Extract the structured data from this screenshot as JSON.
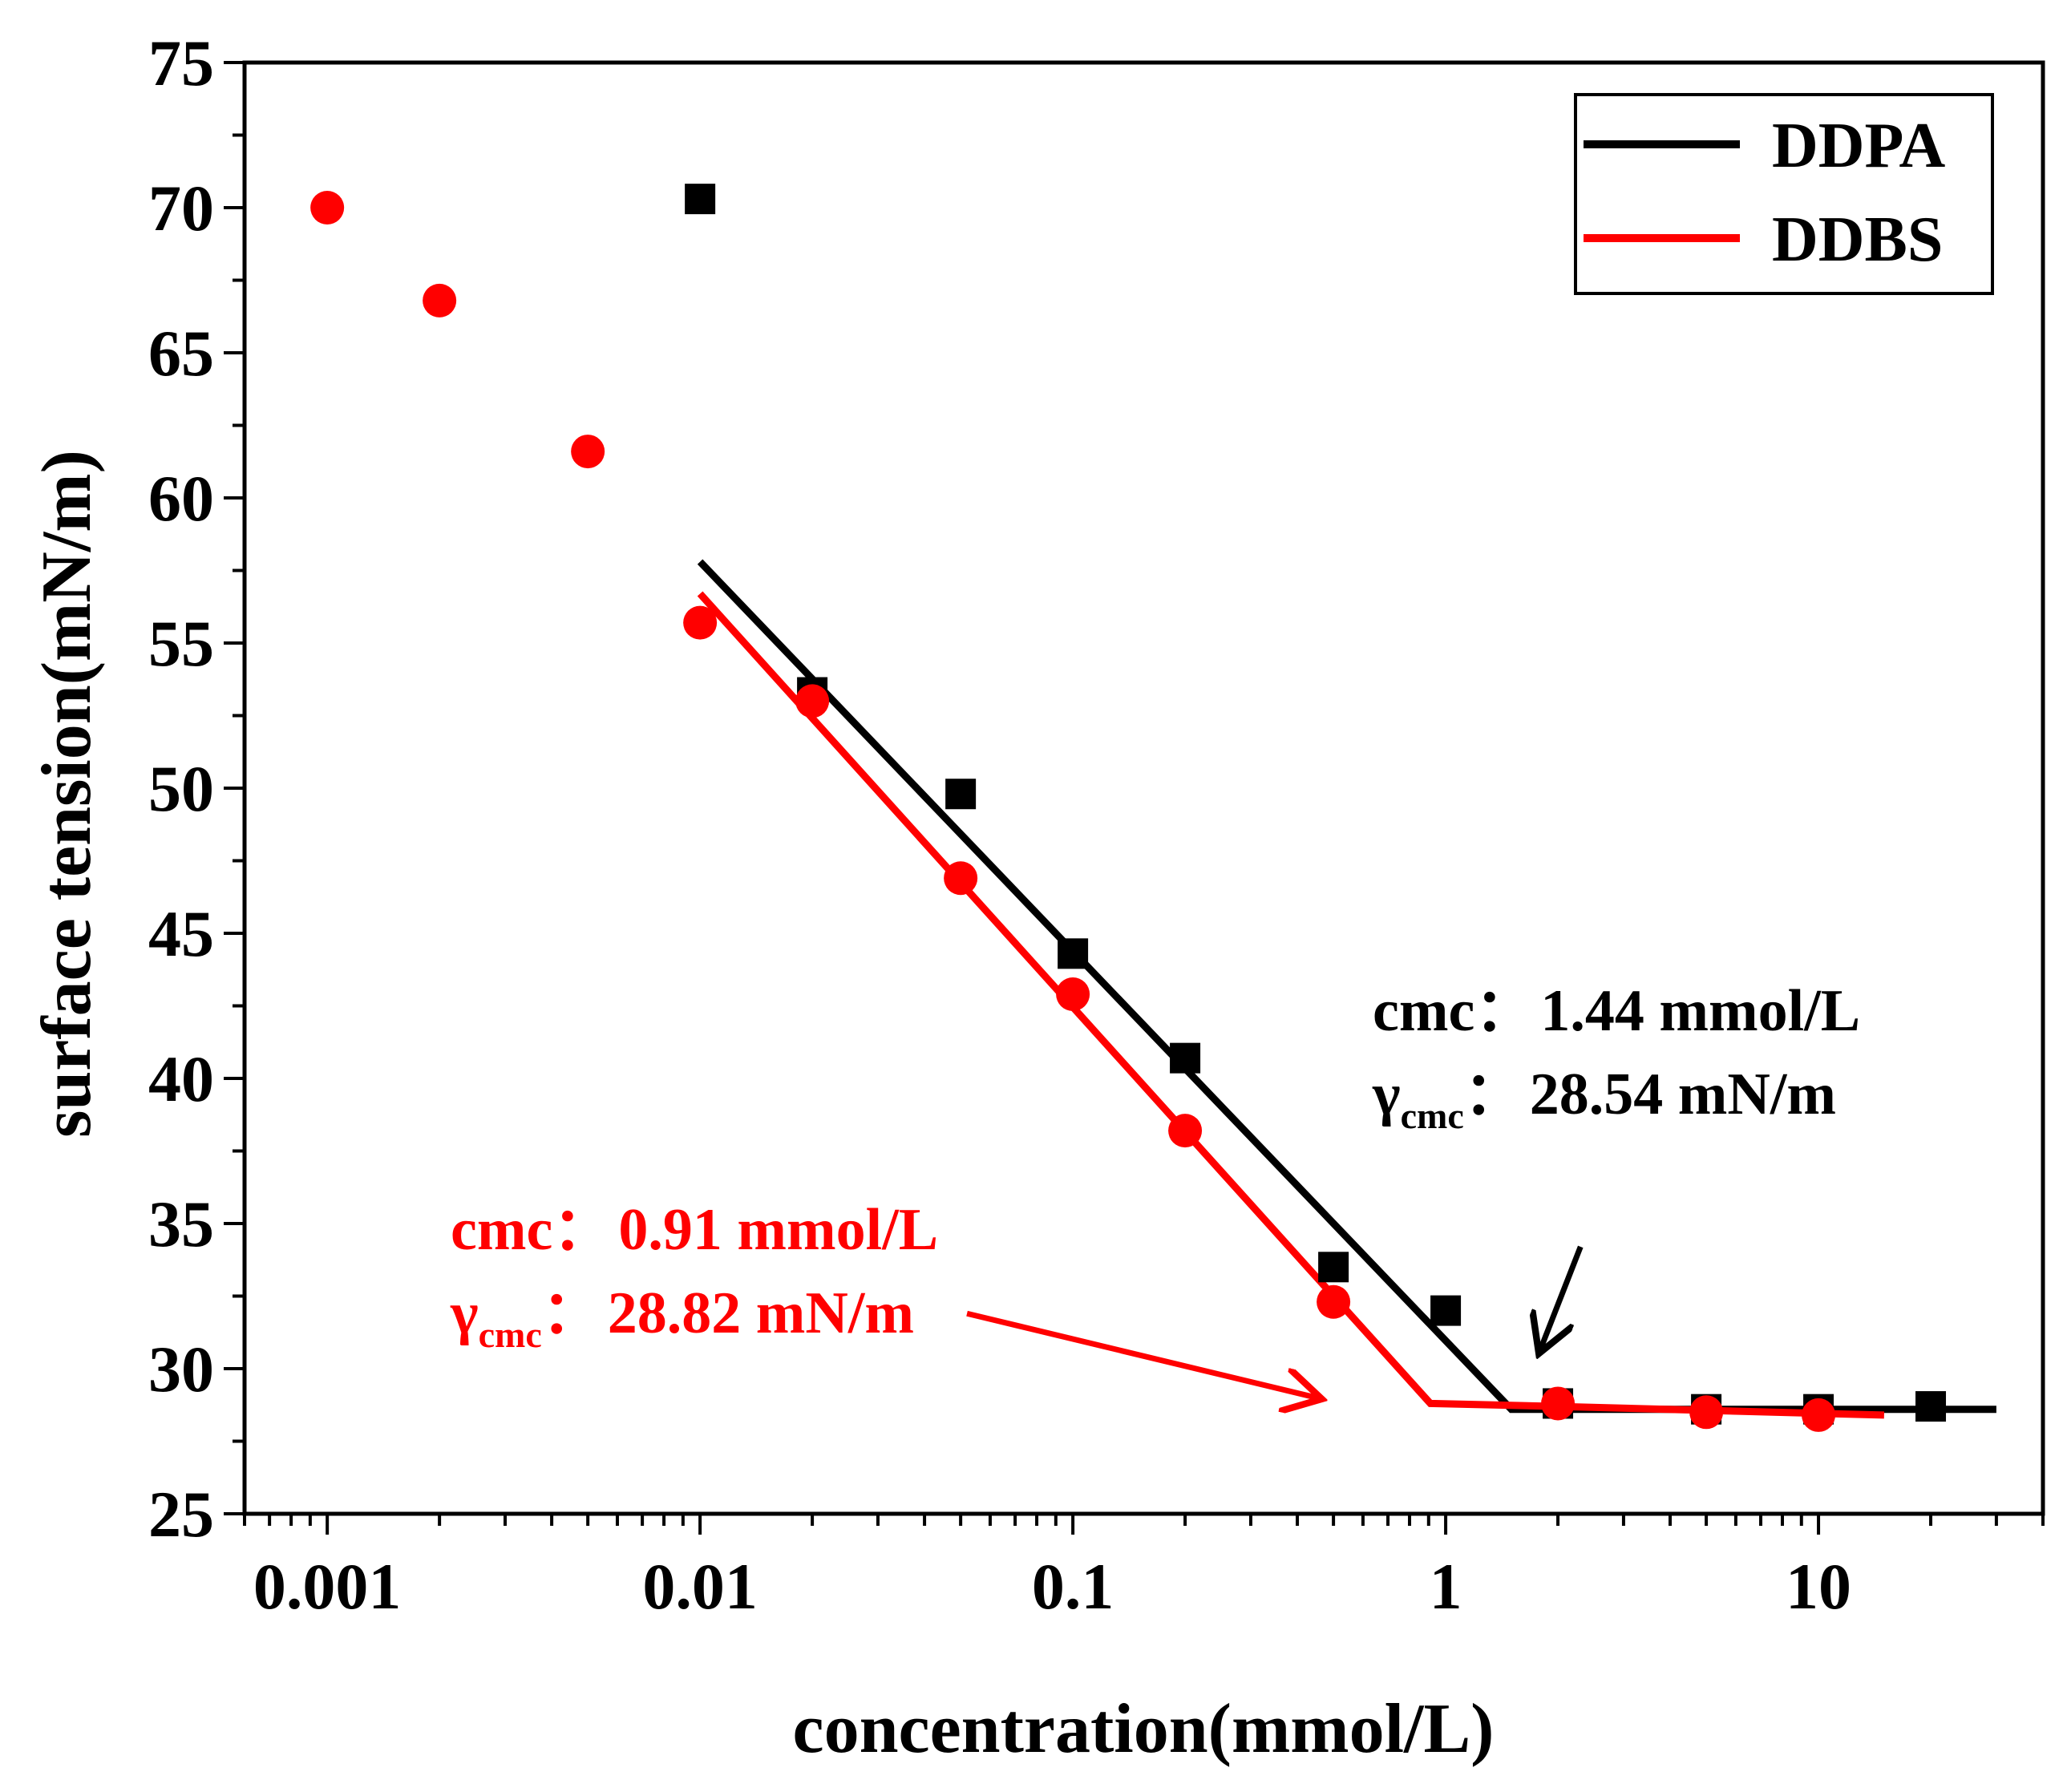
{
  "chart_data": {
    "type": "scatter",
    "title": "",
    "xlabel": "concentration(mmol/L)",
    "ylabel": "surface tension(mN/m)",
    "xscale": "log",
    "xlim": [
      0.0006,
      40
    ],
    "ylim": [
      25,
      75
    ],
    "xticks": [
      {
        "value": 0.001,
        "label": "0.001"
      },
      {
        "value": 0.01,
        "label": "0.01"
      },
      {
        "value": 0.1,
        "label": "0.1"
      },
      {
        "value": 1,
        "label": "1"
      },
      {
        "value": 10,
        "label": "10"
      }
    ],
    "yticks": [
      {
        "value": 25,
        "label": "25"
      },
      {
        "value": 30,
        "label": "30"
      },
      {
        "value": 35,
        "label": "35"
      },
      {
        "value": 40,
        "label": "40"
      },
      {
        "value": 45,
        "label": "45"
      },
      {
        "value": 50,
        "label": "50"
      },
      {
        "value": 55,
        "label": "55"
      },
      {
        "value": 60,
        "label": "60"
      },
      {
        "value": 65,
        "label": "65"
      },
      {
        "value": 70,
        "label": "70"
      },
      {
        "value": 75,
        "label": "75"
      }
    ],
    "legend_position": "top-right",
    "series": [
      {
        "name": "DDPA",
        "color": "#000000",
        "marker": "square",
        "points": [
          {
            "x": 0.01,
            "y": 70.3
          },
          {
            "x": 0.02,
            "y": 53.3
          },
          {
            "x": 0.05,
            "y": 49.8
          },
          {
            "x": 0.1,
            "y": 44.3
          },
          {
            "x": 0.2,
            "y": 40.7
          },
          {
            "x": 0.5,
            "y": 33.5
          },
          {
            "x": 1,
            "y": 32.0
          },
          {
            "x": 2,
            "y": 28.8
          },
          {
            "x": 5,
            "y": 28.6
          },
          {
            "x": 10,
            "y": 28.6
          },
          {
            "x": 20,
            "y": 28.7
          }
        ],
        "fit_line": [
          {
            "x": 0.01,
            "y": 57.8
          },
          {
            "x": 1.5,
            "y": 28.6
          },
          {
            "x": 3,
            "y": 28.6
          },
          {
            "x": 30,
            "y": 28.6
          }
        ]
      },
      {
        "name": "DDBS",
        "color": "#ff0000",
        "marker": "circle",
        "points": [
          {
            "x": 0.001,
            "y": 70.0
          },
          {
            "x": 0.002,
            "y": 66.8
          },
          {
            "x": 0.005,
            "y": 61.6
          },
          {
            "x": 0.01,
            "y": 55.7
          },
          {
            "x": 0.02,
            "y": 53.0
          },
          {
            "x": 0.05,
            "y": 46.9
          },
          {
            "x": 0.1,
            "y": 42.9
          },
          {
            "x": 0.2,
            "y": 38.2
          },
          {
            "x": 0.5,
            "y": 32.3
          },
          {
            "x": 2,
            "y": 28.8
          },
          {
            "x": 5,
            "y": 28.5
          },
          {
            "x": 10,
            "y": 28.4
          }
        ],
        "fit_line": [
          {
            "x": 0.01,
            "y": 56.7
          },
          {
            "x": 0.91,
            "y": 28.8
          },
          {
            "x": 2,
            "y": 28.7
          },
          {
            "x": 15,
            "y": 28.4
          }
        ]
      }
    ],
    "annotations": [
      {
        "series": "DDPA",
        "color": "#000000",
        "cmc_label": "cmc：",
        "cmc_value": "1.44 mmol/L",
        "gamma_symbol": "γ",
        "gamma_sub": "cmc",
        "gamma_colon": "：",
        "gamma_value": "28.54 mN/m",
        "arrow_from": {
          "x": 2.3,
          "y": 34.2
        },
        "arrow_to": {
          "x": 1.8,
          "y": 30.7
        }
      },
      {
        "series": "DDBS",
        "color": "#ff0000",
        "cmc_label": "cmc：",
        "cmc_value": "0.91 mmol/L",
        "gamma_symbol": "γ",
        "gamma_sub": "cmc",
        "gamma_colon": "：",
        "gamma_value": "28.82 mN/m",
        "arrow_from": {
          "x": 0.052,
          "y": 31.9
        },
        "arrow_to": {
          "x": 0.45,
          "y": 29.0
        }
      }
    ]
  }
}
